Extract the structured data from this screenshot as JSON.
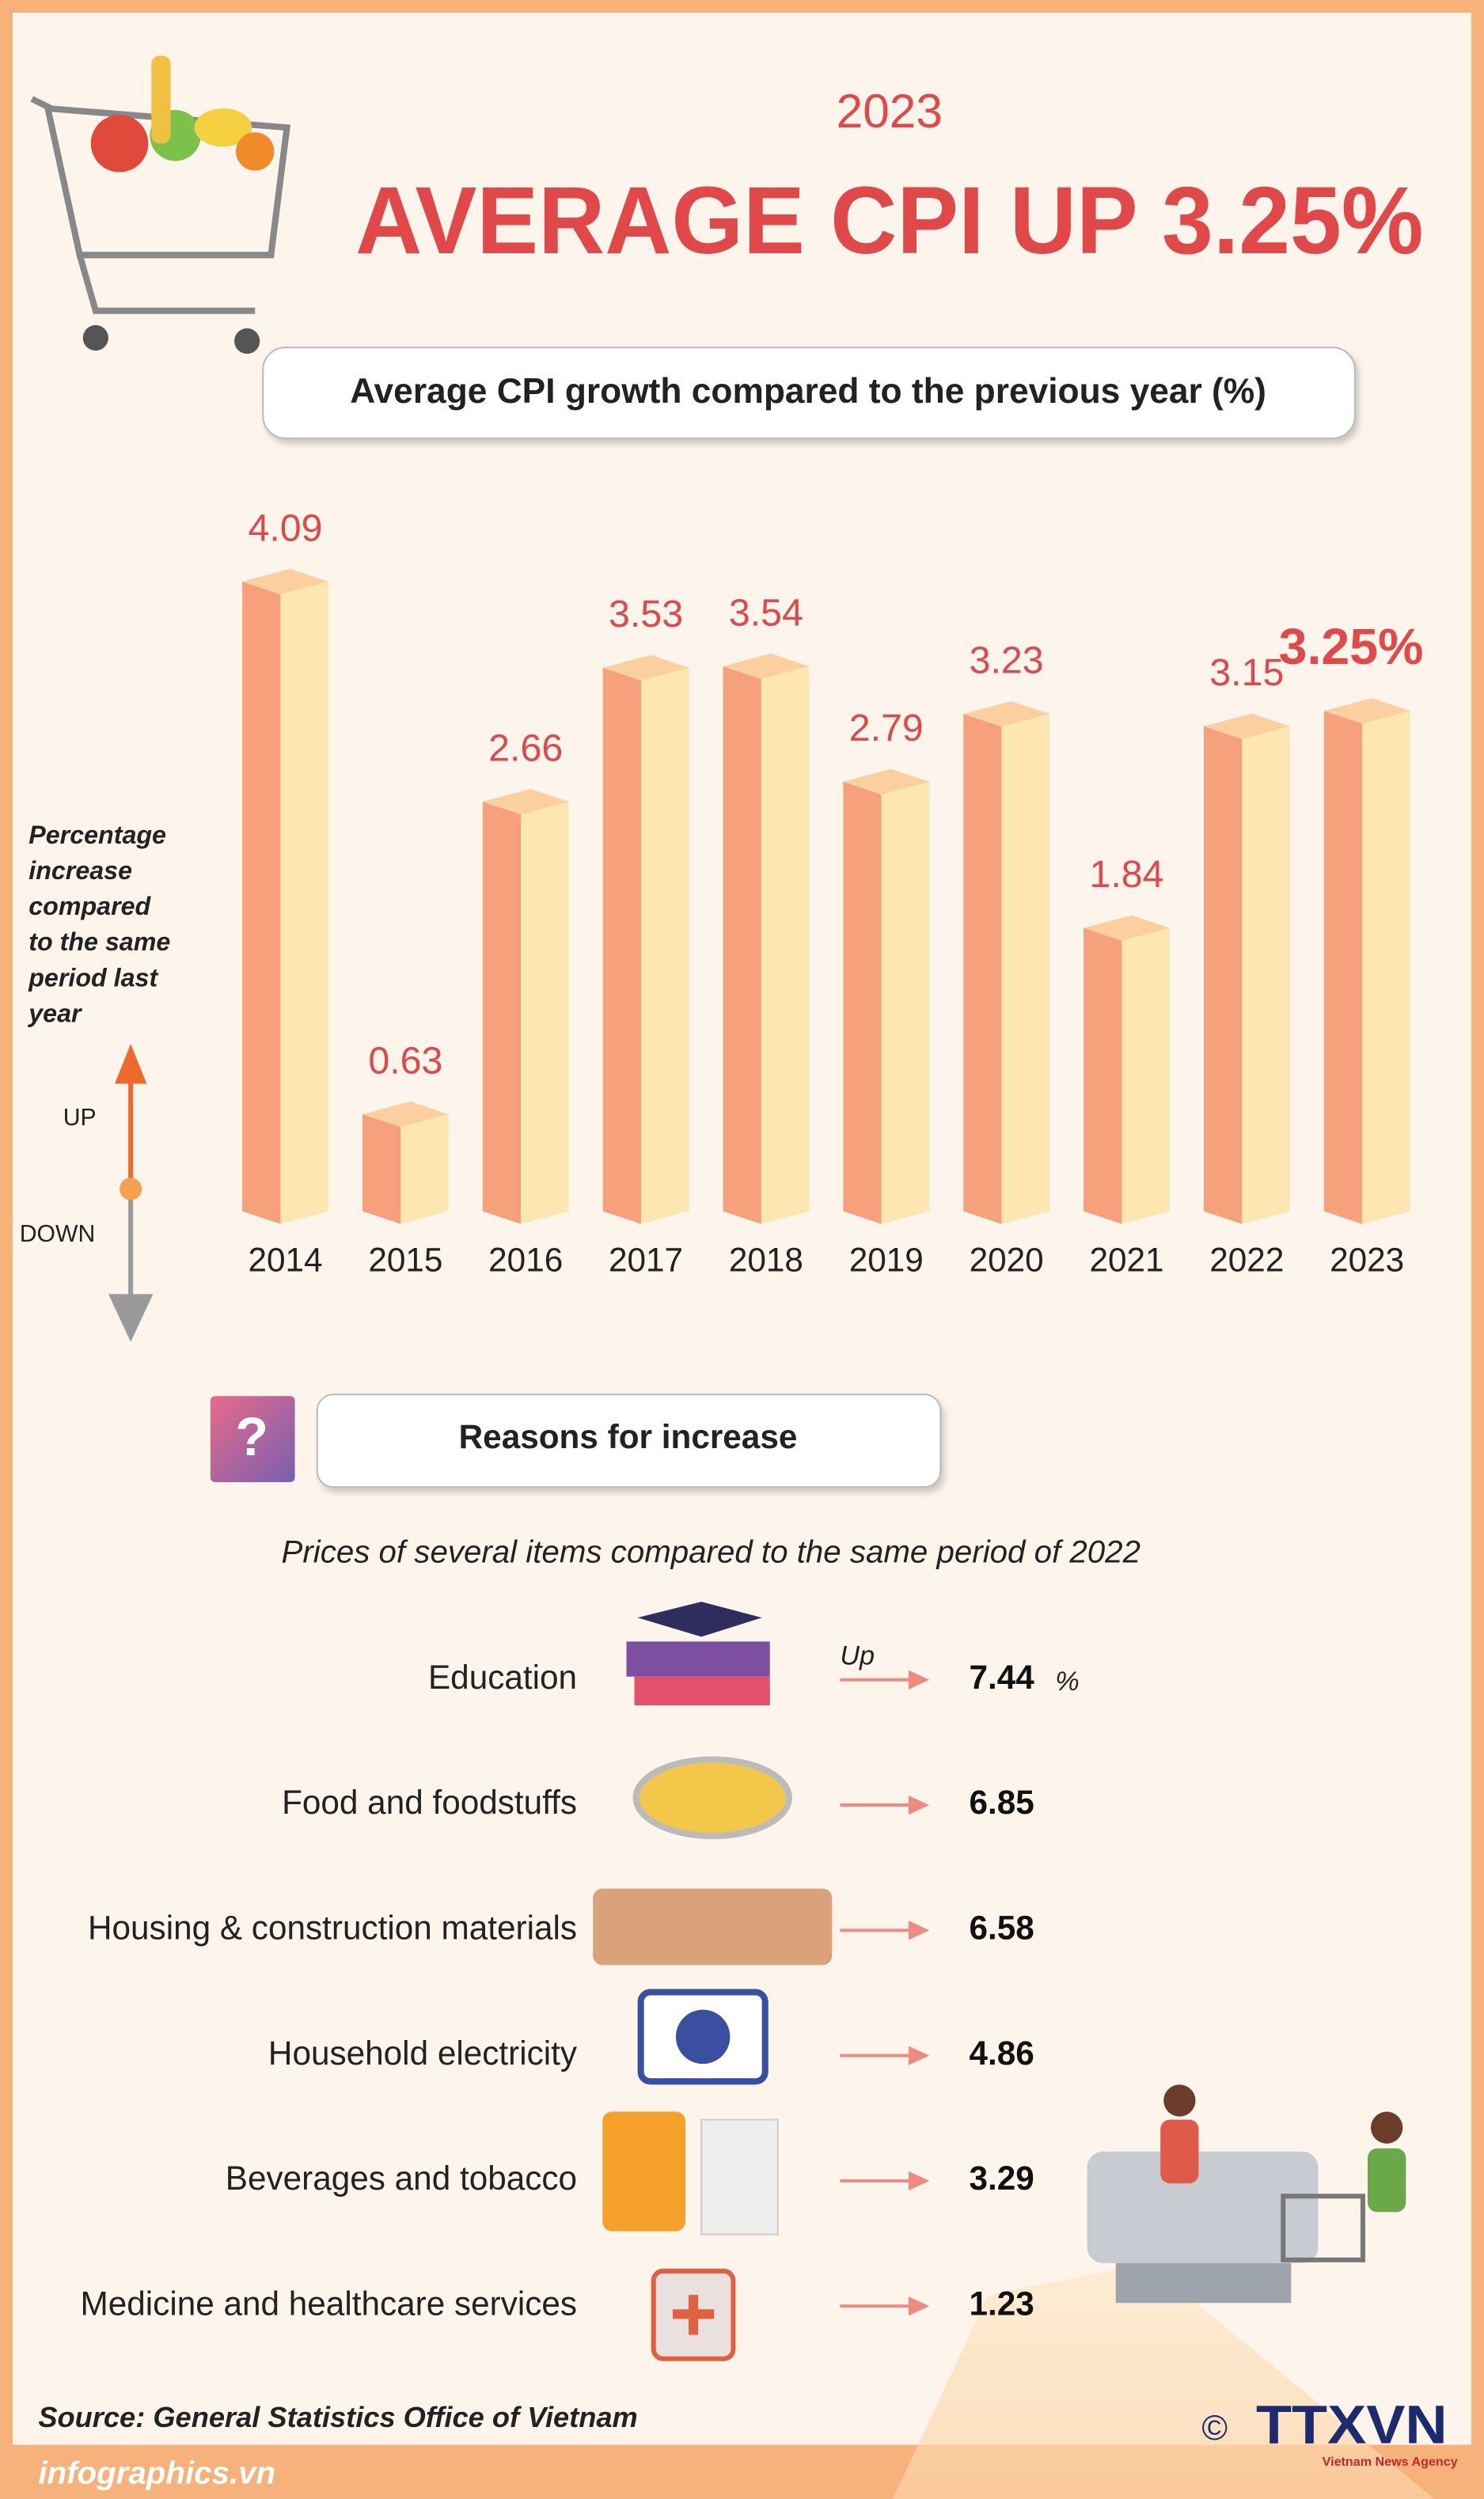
{
  "header": {
    "year": "2023",
    "title": "AVERAGE CPI UP 3.25%"
  },
  "chart_data": {
    "type": "bar",
    "title": "Average CPI growth compared to the previous year (%)",
    "categories": [
      "2014",
      "2015",
      "2016",
      "2017",
      "2018",
      "2019",
      "2020",
      "2021",
      "2022",
      "2023"
    ],
    "values": [
      4.09,
      0.63,
      2.66,
      3.53,
      3.54,
      2.79,
      3.23,
      1.84,
      3.15,
      3.25
    ],
    "value_labels": [
      "4.09",
      "0.63",
      "2.66",
      "3.53",
      "3.54",
      "2.79",
      "3.23",
      "1.84",
      "3.15",
      "3.25%"
    ],
    "colors": {
      "left": "#f6a07c",
      "right": "#fde6b0",
      "top": "#fccfa0",
      "label": "#e0484a"
    }
  },
  "axis_note": {
    "lines": [
      "Percentage",
      "increase",
      "compared",
      "to the same",
      "period last",
      "year"
    ],
    "up": "UP",
    "down": "DOWN"
  },
  "reasons": {
    "title": "Reasons for increase",
    "subtitle": "Prices of several items compared to the same period of 2022",
    "up_label": "Up",
    "unit": "%",
    "items": [
      {
        "label": "Education",
        "value": 7.44
      },
      {
        "label": "Food and foodstuffs",
        "value": 6.85
      },
      {
        "label": "Housing & construction materials",
        "value": 6.58
      },
      {
        "label": "Household electricity",
        "value": 4.86
      },
      {
        "label": "Beverages and tobacco",
        "value": 3.29
      },
      {
        "label": "Medicine and healthcare services",
        "value": 1.23
      }
    ]
  },
  "footer": {
    "source": "Source: General Statistics Office of Vietnam",
    "site": "infographics.vn",
    "copyright": "©",
    "logo": "TTXVN",
    "agency": "Vietnam News Agency"
  }
}
